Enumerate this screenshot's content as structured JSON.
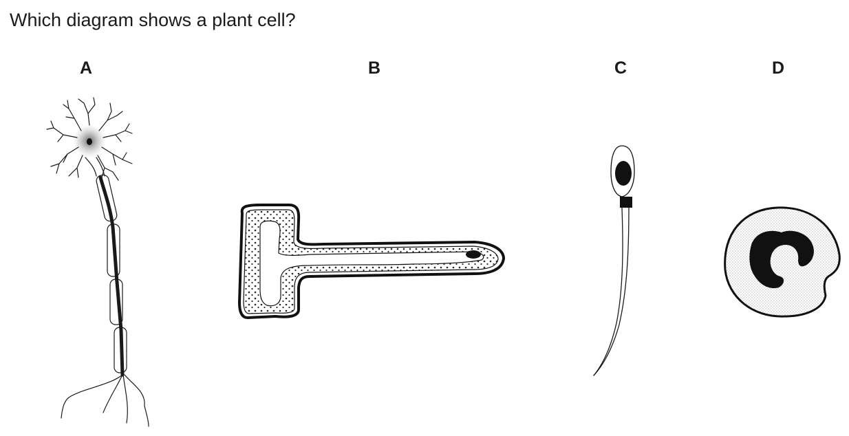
{
  "question": "Which diagram shows a plant cell?",
  "options": [
    {
      "label": "A",
      "depicts": "nerve cell"
    },
    {
      "label": "B",
      "depicts": "root hair cell"
    },
    {
      "label": "C",
      "depicts": "sperm cell"
    },
    {
      "label": "D",
      "depicts": "white blood cell"
    }
  ]
}
